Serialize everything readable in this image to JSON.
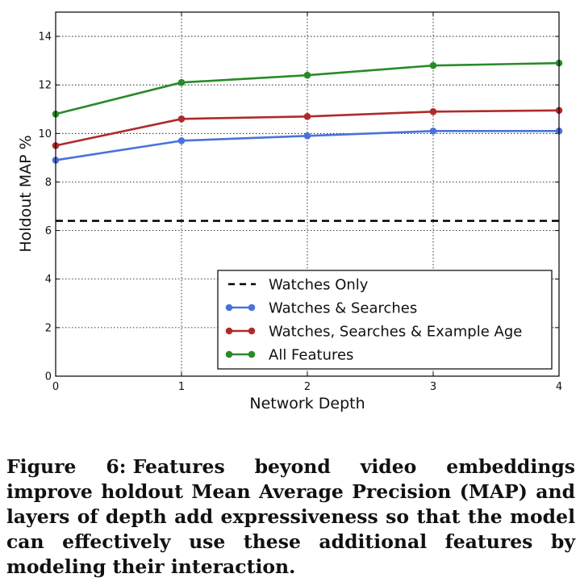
{
  "chart_data": {
    "type": "line",
    "xlabel": "Network Depth",
    "ylabel": "Holdout MAP %",
    "xlim": [
      0,
      4
    ],
    "ylim": [
      0,
      15
    ],
    "xticks": [
      "0",
      "1",
      "2",
      "3",
      "4"
    ],
    "yticks": [
      "0",
      "2",
      "4",
      "6",
      "8",
      "10",
      "12",
      "14"
    ],
    "grid": true,
    "legend_position": "lower-right",
    "x": [
      0,
      1,
      2,
      3,
      4
    ],
    "baseline": {
      "name": "Watches Only",
      "value": 6.4,
      "color": "#000000",
      "style": "dashed"
    },
    "series": [
      {
        "name": "Watches & Searches",
        "values": [
          8.9,
          9.7,
          9.9,
          10.1,
          10.1
        ],
        "color": "#4a72d8"
      },
      {
        "name": "Watches, Searches & Example Age",
        "values": [
          9.5,
          10.6,
          10.7,
          10.9,
          10.95
        ],
        "color": "#b02a2a"
      },
      {
        "name": "All Features",
        "values": [
          10.8,
          12.1,
          12.4,
          12.8,
          12.9
        ],
        "color": "#2a8a2a"
      }
    ]
  },
  "caption": {
    "label": "Figure 6:",
    "text": "Features beyond video embeddings improve holdout Mean Average Precision (MAP) and layers of depth add expressiveness so that the model can effectively use these additional features by modeling their interaction."
  }
}
